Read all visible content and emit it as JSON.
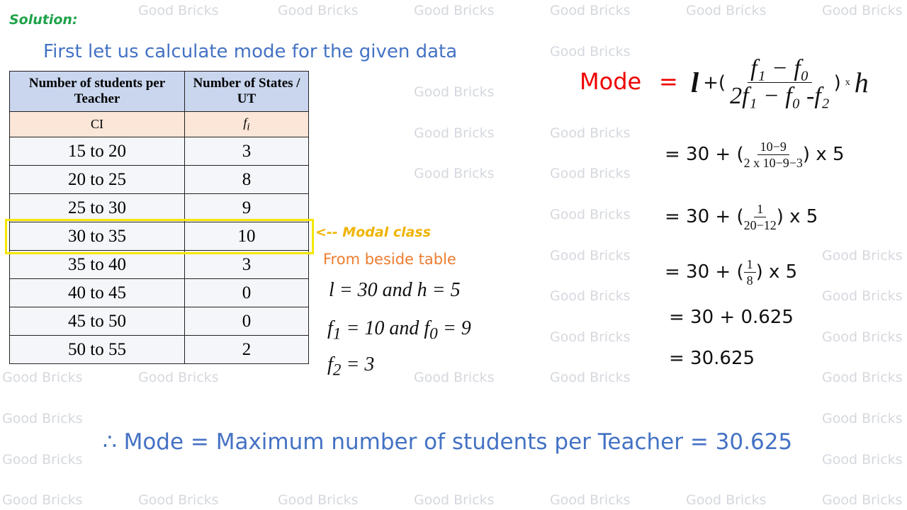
{
  "watermark": "Good Bricks",
  "solution_label": "Solution:",
  "intro": "First let us calculate mode for the given data",
  "table": {
    "headers": [
      "Number of students per Teacher",
      "Number of States / UT"
    ],
    "subheaders": [
      "CI",
      "fi"
    ],
    "rows": [
      [
        "15 to 20",
        "3"
      ],
      [
        "20 to 25",
        "8"
      ],
      [
        "25 to 30",
        "9"
      ],
      [
        "30 to 35",
        "10"
      ],
      [
        "35 to 40",
        "3"
      ],
      [
        "40 to 45",
        "0"
      ],
      [
        "45 to 50",
        "0"
      ],
      [
        "50 to 55",
        "2"
      ]
    ]
  },
  "modal_class_label": "<-- Modal class",
  "from_table": "From beside table",
  "given": {
    "line1": "l  = 30 and h  = 5",
    "line2_a": "f",
    "line2_b": "1",
    "line2_c": " = 10 and f",
    "line2_d": "0",
    "line2_e": " = 9",
    "line3_a": "f",
    "line3_b": "2",
    "line3_c": " = 3"
  },
  "formula": {
    "label": "Mode",
    "eq": "=",
    "l": "l",
    "plus": "+(",
    "num": "f₁ − f₀",
    "den": "2f₁ − f₀ -f₂",
    "close": ")",
    "times": "x",
    "h": "h"
  },
  "steps": {
    "s1_pre": "= 30 + (",
    "s1_num": "10−9",
    "s1_den": "2 x 10−9−3",
    "s1_post": ") x 5",
    "s2_pre": "= 30 + (",
    "s2_num": "1",
    "s2_den": "20−12",
    "s2_post": ") x 5",
    "s3_pre": "= 30 + (",
    "s3_num": "1",
    "s3_den": "8",
    "s3_post": ") x 5",
    "s4": "= 30 + 0.625",
    "s5": "= 30.625"
  },
  "conclusion": "∴ Mode = Maximum number of students  per Teacher = 30.625",
  "colors": {
    "title": "#4472c4",
    "mode": "#ee0000",
    "solution": "#1fa34a",
    "modal": "#f0b400",
    "from": "#ed7d31"
  }
}
